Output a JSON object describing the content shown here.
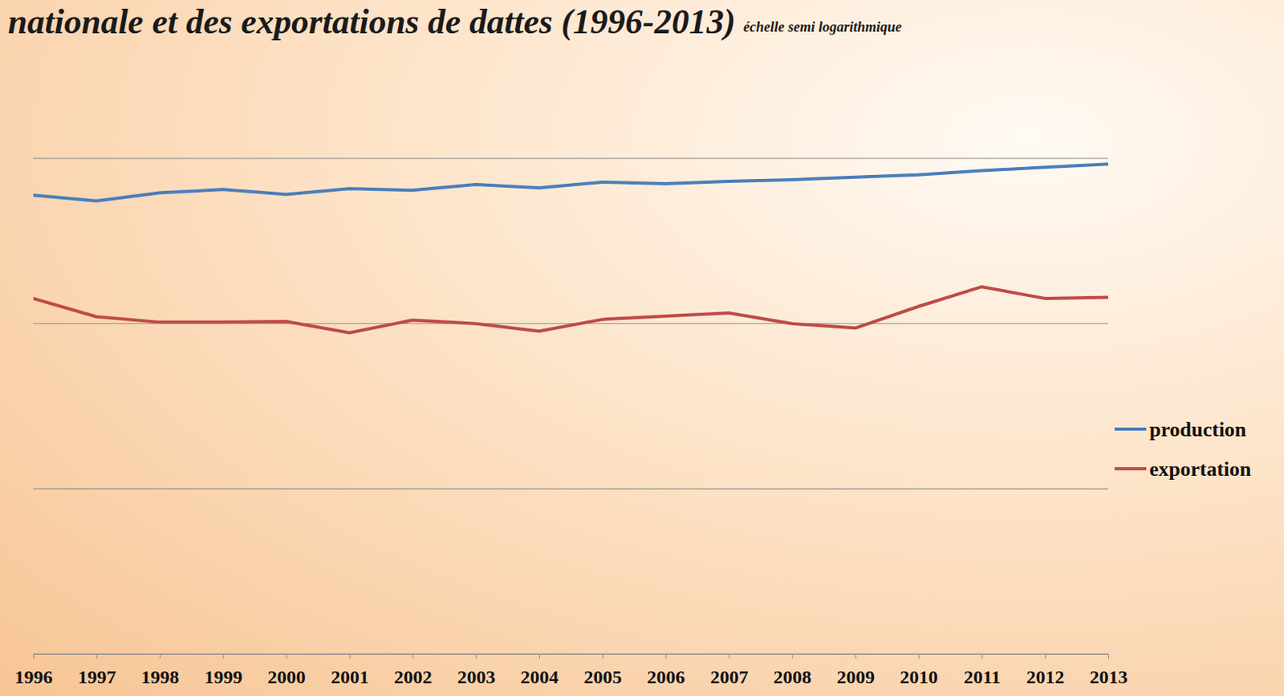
{
  "chart_data": {
    "type": "line",
    "title": "nationale et des exportations de dattes (1996-2013)",
    "subtitle": "échelle semi logarithmique",
    "x": [
      1996,
      1997,
      1998,
      1999,
      2000,
      2001,
      2002,
      2003,
      2004,
      2005,
      2006,
      2007,
      2008,
      2009,
      2010,
      2011,
      2012,
      2013
    ],
    "xlim": [
      1996,
      2013
    ],
    "xticks": [
      1996,
      1997,
      1998,
      1999,
      2000,
      2001,
      2002,
      2003,
      2004,
      2005,
      2006,
      2007,
      2008,
      2009,
      2010,
      2011,
      2012,
      2013
    ],
    "ylim": [
      1000,
      1000000
    ],
    "yticks": [
      1000,
      10000,
      100000,
      1000000
    ],
    "log": "y",
    "grid": true,
    "tick_labels": "x",
    "legend": "right",
    "series": [
      {
        "name": "production",
        "color": "#4a7ebb",
        "values": [
          599000,
          553000,
          619000,
          648000,
          605000,
          656000,
          641000,
          695000,
          663000,
          718000,
          703000,
          727000,
          743000,
          769000,
          796000,
          843000,
          883000,
          923000
        ]
      },
      {
        "name": "exportation",
        "color": "#be4b48",
        "values": [
          142000,
          110000,
          102000,
          102000,
          103000,
          88000,
          105000,
          100000,
          90000,
          106000,
          111000,
          116000,
          100000,
          94000,
          127000,
          167000,
          142000,
          144000
        ]
      }
    ]
  }
}
